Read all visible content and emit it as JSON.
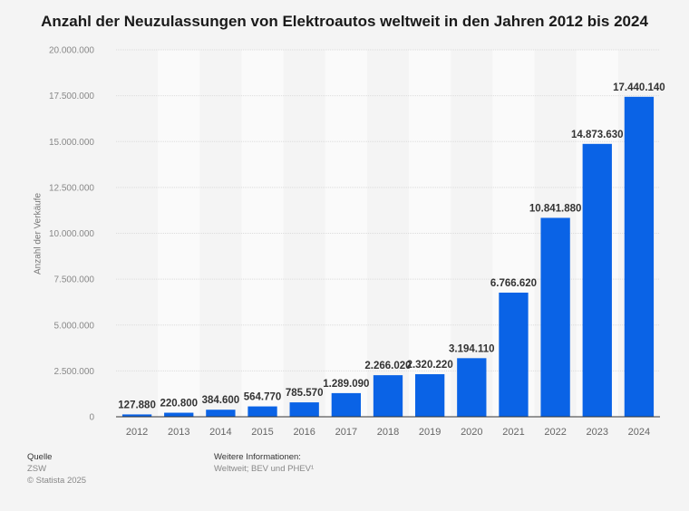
{
  "chart_data": {
    "type": "bar",
    "title": "Anzahl der Neuzulassungen von Elektroautos weltweit in den Jahren 2012 bis 2024",
    "xlabel": "",
    "ylabel": "Anzahl der Verkäufe",
    "ylim": [
      0,
      20000000
    ],
    "yticks": [
      0,
      2500000,
      5000000,
      7500000,
      10000000,
      12500000,
      15000000,
      17500000,
      20000000
    ],
    "ytick_labels": [
      "0",
      "2.500.000",
      "5.000.000",
      "7.500.000",
      "10.000.000",
      "12.500.000",
      "15.000.000",
      "17.500.000",
      "20.000.000"
    ],
    "grid": true,
    "categories": [
      "2012",
      "2013",
      "2014",
      "2015",
      "2016",
      "2017",
      "2018",
      "2019",
      "2020",
      "2021",
      "2022",
      "2023",
      "2024"
    ],
    "values": [
      127880,
      220800,
      384600,
      564770,
      785570,
      1289090,
      2266020,
      2320220,
      3194110,
      6766620,
      10841880,
      14873630,
      17440140
    ],
    "value_labels": [
      "127.880",
      "220.800",
      "384.600",
      "564.770",
      "785.570",
      "1.289.090",
      "2.266.020",
      "2.320.220",
      "3.194.110",
      "6.766.620",
      "10.841.880",
      "14.873.630",
      "17.440.140"
    ],
    "bar_color": "#0a63e6"
  },
  "footer": {
    "source_heading": "Quelle",
    "source": "ZSW",
    "copyright": "© Statista 2025",
    "info_heading": "Weitere Informationen:",
    "info": "Weltweit; BEV und PHEV¹"
  }
}
